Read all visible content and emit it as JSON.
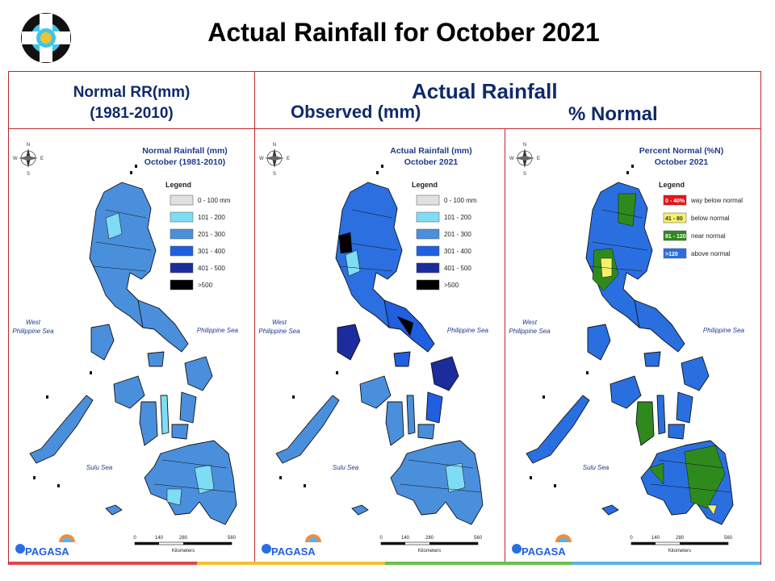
{
  "header": {
    "title": "Actual Rainfall for October 2021",
    "col_normal_line1": "Normal RR(mm)",
    "col_normal_line2": "(1981-2010)",
    "col_actual": "Actual Rainfall",
    "col_observed": "Observed (mm)",
    "col_percent": "% Normal"
  },
  "maps": [
    {
      "id": "normal",
      "title_line1": "Normal Rainfall (mm)",
      "title_line2": "October (1981-2010)",
      "legend_title": "Legend",
      "legend": [
        {
          "label": "0 - 100 mm",
          "color": "#e0e0e0"
        },
        {
          "label": "101 - 200",
          "color": "#7fdcf5"
        },
        {
          "label": "201 - 300",
          "color": "#4a8fdc"
        },
        {
          "label": "301 - 400",
          "color": "#1f5fe0"
        },
        {
          "label": "401 - 500",
          "color": "#1c2c9c"
        },
        {
          "label": ">500",
          "color": "#000000"
        }
      ]
    },
    {
      "id": "observed",
      "title_line1": "Actual Rainfall (mm)",
      "title_line2": "October 2021",
      "legend_title": "Legend",
      "legend": [
        {
          "label": "0 - 100 mm",
          "color": "#e0e0e0"
        },
        {
          "label": "101 - 200",
          "color": "#7fdcf5"
        },
        {
          "label": "201 - 300",
          "color": "#4a8fdc"
        },
        {
          "label": "301 - 400",
          "color": "#1f5fe0"
        },
        {
          "label": "401 - 500",
          "color": "#1c2c9c"
        },
        {
          "label": ">500",
          "color": "#000000"
        }
      ]
    },
    {
      "id": "percent",
      "title_line1": "Percent Normal (%N)",
      "title_line2": "October 2021",
      "legend_title": "Legend",
      "legend": [
        {
          "label": "way below normal",
          "range": "0 - 40%",
          "color": "#e8141a"
        },
        {
          "label": "below normal",
          "range": "41 - 80",
          "color": "#f7f06a"
        },
        {
          "label": "near normal",
          "range": "81 - 120",
          "color": "#2f8a1e"
        },
        {
          "label": "above normal",
          "range": ">120",
          "color": "#2a6fe0"
        }
      ]
    }
  ],
  "labels": {
    "west_sea_line1": "West",
    "west_sea_line2": "Philippine Sea",
    "east_sea": "Philippine Sea",
    "sulu": "Sulu Sea",
    "north": "N",
    "south": "S",
    "east": "E",
    "west": "W",
    "scale_0": "0",
    "scale_140": "140",
    "scale_280": "280",
    "scale_560": "560",
    "scale_unit": "Kilometers",
    "agency": "PAGASA"
  },
  "colors": {
    "frame": "#c0292b",
    "header_text": "#0f2a6b",
    "stripe": [
      "#e0474c",
      "#f2c230",
      "#6cc04a",
      "#5bb3e6"
    ]
  }
}
